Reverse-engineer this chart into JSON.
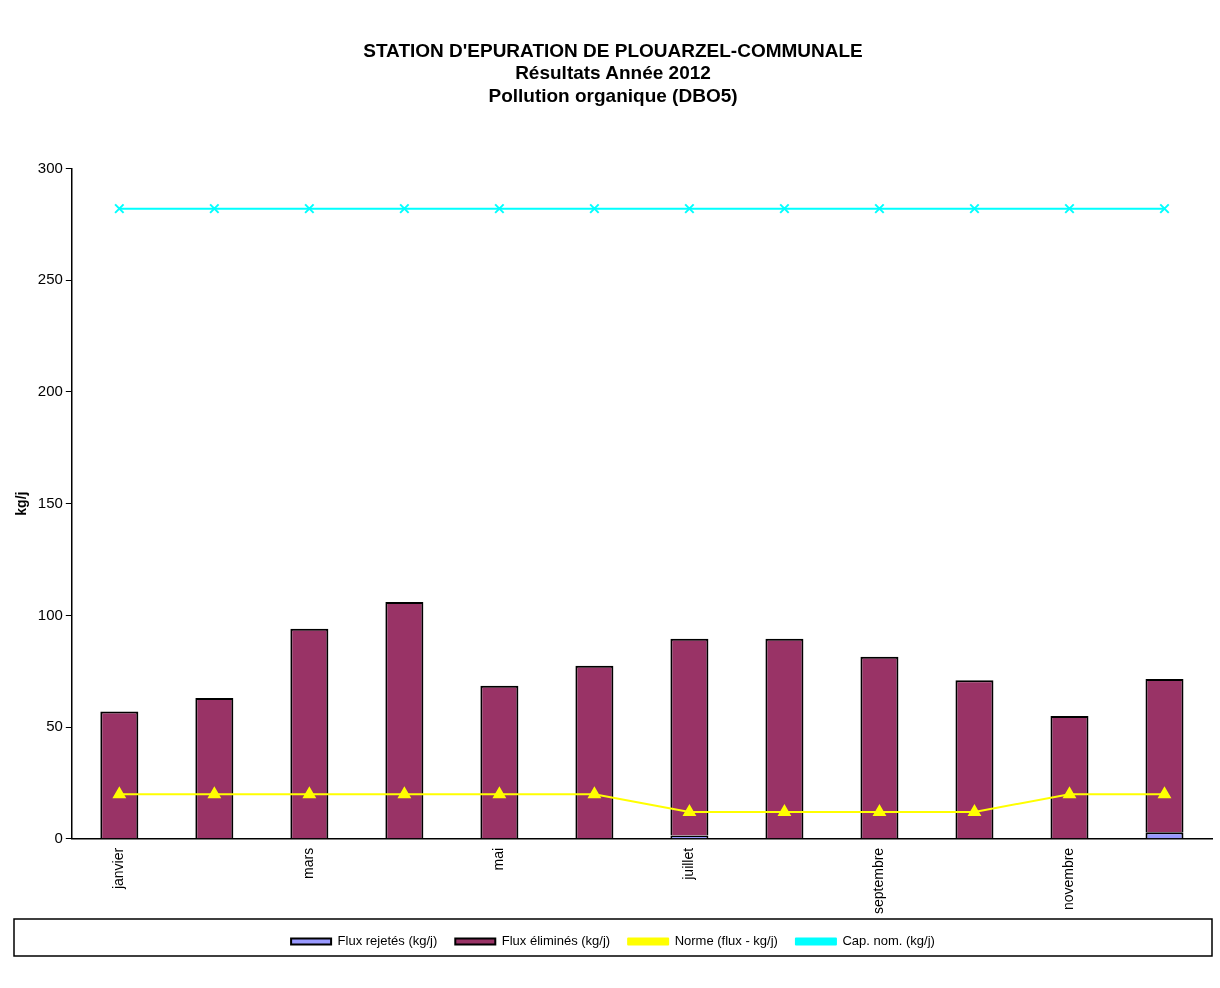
{
  "chart_data": {
    "type": "bar",
    "title": "STATION D'EPURATION DE PLOUARZEL-COMMUNALE",
    "subtitle": "Résultats Année 2012\nPollution organique (DBO5)",
    "ylabel": "kg/j",
    "categories": [
      "janvier",
      null,
      "mars",
      null,
      "mai",
      null,
      "juillet",
      null,
      "septembre",
      null,
      "novembre",
      null
    ],
    "stacked": true,
    "grid": false,
    "legend": "bottom",
    "ylim": [
      0,
      300
    ],
    "yticks": [
      0,
      50,
      100,
      150,
      200,
      250,
      300
    ],
    "series": [
      {
        "name": "Flux rejetés (kg/j)",
        "color": "#9999ff",
        "values": [
          null,
          null,
          null,
          null,
          null,
          null,
          1.5,
          null,
          null,
          null,
          null,
          3
        ]
      },
      {
        "name": "Flux éliminés (kg/j)",
        "color": "#993366",
        "values": [
          57,
          63,
          94,
          106,
          68.5,
          77.5,
          88,
          89.5,
          81.5,
          71,
          55,
          68.5
        ]
      },
      {
        "name": "Norme (flux - kg/j)",
        "type": "line",
        "marker": "triangle",
        "color": "#ffff00",
        "values": [
          20,
          20,
          20,
          20,
          20,
          20,
          12,
          12,
          12,
          12,
          20,
          20
        ]
      },
      {
        "name": "Cap. nom. (kg/j)",
        "type": "line",
        "marker": "cross",
        "color": "#00ffff",
        "values": [
          282,
          282,
          282,
          282,
          282,
          282,
          282,
          282,
          282,
          282,
          282,
          282
        ]
      }
    ]
  }
}
